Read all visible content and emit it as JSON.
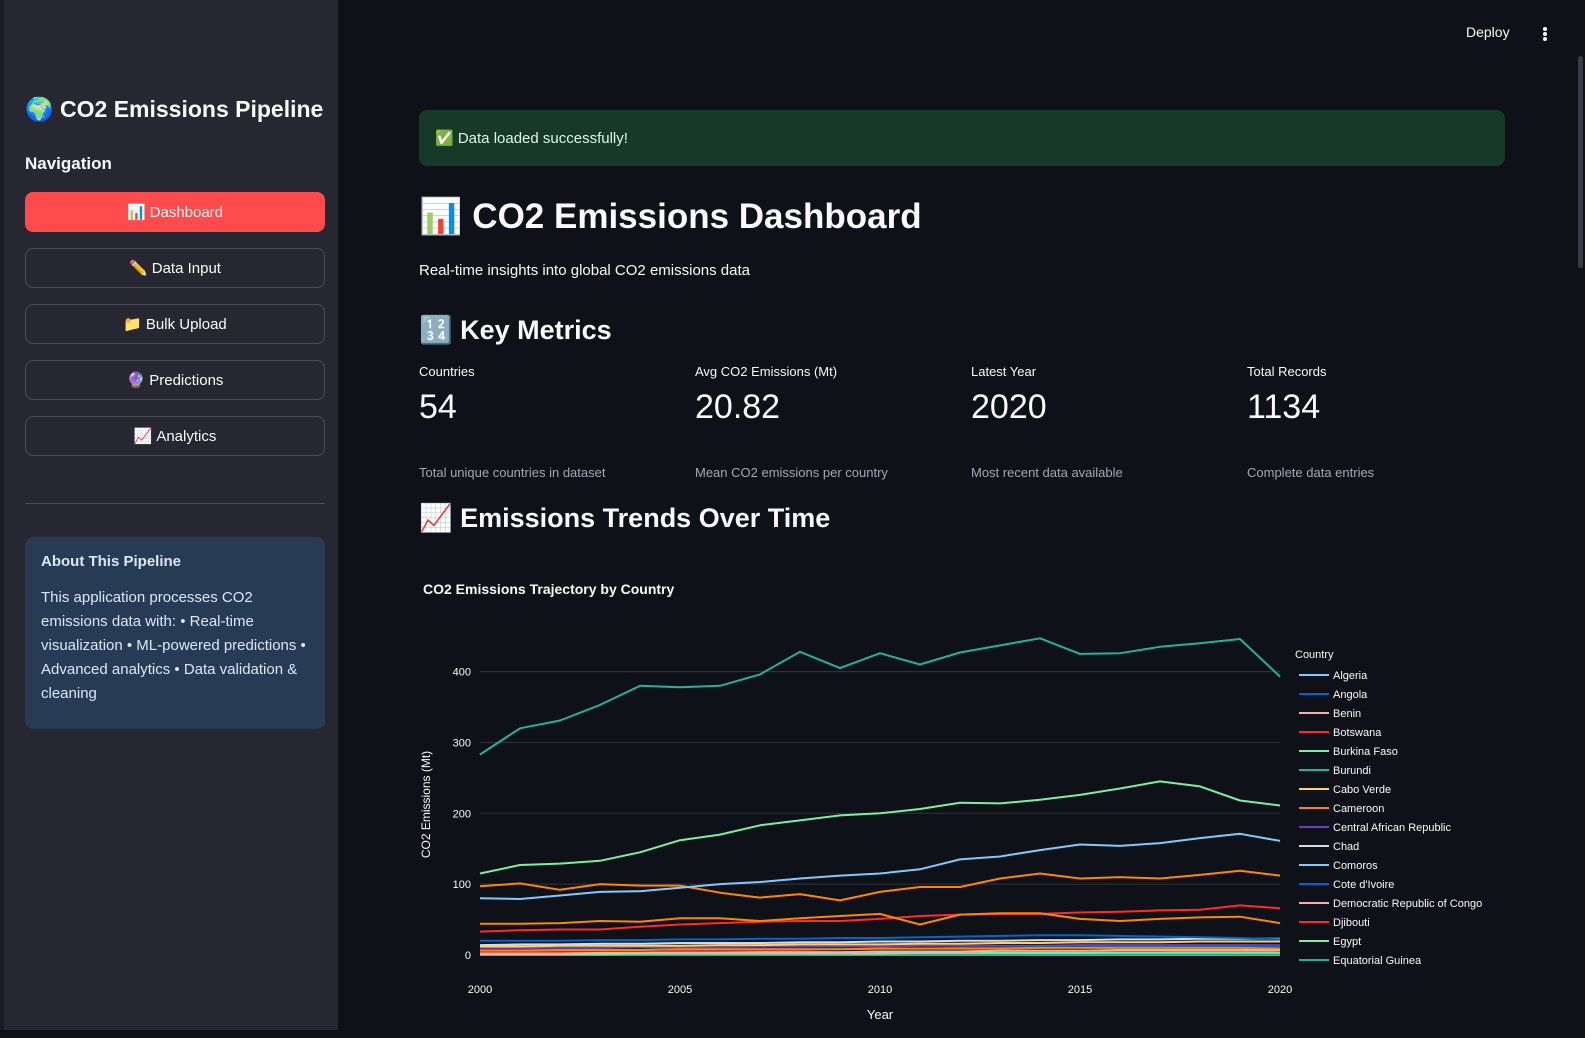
{
  "sidebar": {
    "title": "🌍 CO2 Emissions Pipeline",
    "nav_label": "Navigation",
    "items": [
      {
        "icon": "📊",
        "label": "Dashboard",
        "active": true
      },
      {
        "icon": "✏️",
        "label": "Data Input",
        "active": false
      },
      {
        "icon": "📁",
        "label": "Bulk Upload",
        "active": false
      },
      {
        "icon": "🔮",
        "label": "Predictions",
        "active": false
      },
      {
        "icon": "📈",
        "label": "Analytics",
        "active": false
      }
    ],
    "about": {
      "title": "About This Pipeline",
      "body": "This application processes CO2 emissions data with: • Real-time visualization • ML-powered predictions • Advanced analytics • Data validation & cleaning"
    }
  },
  "topbar": {
    "deploy_label": "Deploy",
    "menu_icon": "kebab-menu-icon"
  },
  "alert": {
    "text": "✅ Data loaded successfully!"
  },
  "main": {
    "title": "📊 CO2 Emissions Dashboard",
    "subtitle": "Real-time insights into global CO2 emissions data",
    "key_metrics_header": "🔢 Key Metrics",
    "trends_header": "📈 Emissions Trends Over Time"
  },
  "metrics": [
    {
      "label": "Countries",
      "value": "54",
      "help": "Total unique countries in dataset"
    },
    {
      "label": "Avg CO2 Emissions (Mt)",
      "value": "20.82",
      "help": "Mean CO2 emissions per country"
    },
    {
      "label": "Latest Year",
      "value": "2020",
      "help": "Most recent data available"
    },
    {
      "label": "Total Records",
      "value": "1134",
      "help": "Complete data entries"
    }
  ],
  "chart_data": {
    "type": "line",
    "title": "CO2 Emissions Trajectory by Country",
    "xlabel": "Year",
    "ylabel": "CO2 Emissions (Mt)",
    "xlim": [
      2000,
      2020
    ],
    "ylim": [
      0,
      470
    ],
    "x_ticks": [
      2000,
      2005,
      2010,
      2015,
      2020
    ],
    "y_ticks": [
      0,
      100,
      200,
      300,
      400
    ],
    "grid": true,
    "legend_title": "Country",
    "legend_placement": "right",
    "x": [
      2000,
      2001,
      2002,
      2003,
      2004,
      2005,
      2006,
      2007,
      2008,
      2009,
      2010,
      2011,
      2012,
      2013,
      2014,
      2015,
      2016,
      2017,
      2018,
      2019,
      2020
    ],
    "series": [
      {
        "name": "Algeria",
        "color": "#83c9ff",
        "values": [
          80,
          79,
          84,
          89,
          90,
          95,
          100,
          103,
          108,
          112,
          115,
          121,
          135,
          139,
          148,
          156,
          154,
          158,
          165,
          171,
          161
        ]
      },
      {
        "name": "Angola",
        "color": "#0068c9",
        "values": [
          20,
          20,
          20,
          21,
          21,
          22,
          22,
          23,
          23,
          24,
          24,
          25,
          26,
          27,
          28,
          28,
          27,
          26,
          25,
          24,
          22
        ]
      },
      {
        "name": "Benin",
        "color": "#ffabab",
        "values": [
          2,
          2,
          2,
          3,
          3,
          3,
          3,
          4,
          4,
          4,
          5,
          5,
          5,
          6,
          6,
          6,
          7,
          7,
          7,
          7,
          7
        ]
      },
      {
        "name": "Botswana",
        "color": "#ff2b2b",
        "values": [
          4,
          4,
          4,
          4,
          4,
          5,
          5,
          5,
          5,
          4,
          5,
          5,
          5,
          6,
          6,
          6,
          6,
          6,
          7,
          7,
          6
        ]
      },
      {
        "name": "Burkina Faso",
        "color": "#7defa1",
        "values": [
          1,
          1,
          1,
          1,
          2,
          2,
          2,
          2,
          2,
          2,
          2,
          3,
          3,
          3,
          3,
          3,
          4,
          4,
          4,
          4,
          4
        ]
      },
      {
        "name": "Burundi",
        "color": "#29b09d",
        "values": [
          0.2,
          0.2,
          0.2,
          0.2,
          0.2,
          0.2,
          0.2,
          0.2,
          0.2,
          0.2,
          0.3,
          0.3,
          0.3,
          0.4,
          0.4,
          0.4,
          0.5,
          0.5,
          0.5,
          0.6,
          0.6
        ]
      },
      {
        "name": "Cabo Verde",
        "color": "#ffd16a",
        "values": [
          0.3,
          0.3,
          0.3,
          0.3,
          0.4,
          0.4,
          0.4,
          0.4,
          0.4,
          0.4,
          0.5,
          0.5,
          0.5,
          0.5,
          0.5,
          0.6,
          0.6,
          0.6,
          0.6,
          0.6,
          0.6
        ]
      },
      {
        "name": "Cameroon",
        "color": "#ff8700",
        "values": [
          6,
          6,
          7,
          7,
          7,
          8,
          8,
          8,
          8,
          8,
          9,
          9,
          9,
          9,
          10,
          10,
          10,
          10,
          10,
          10,
          9
        ]
      },
      {
        "name": "Central African Republic",
        "color": "#6d3fc0",
        "values": [
          0.2,
          0.2,
          0.2,
          0.2,
          0.2,
          0.2,
          0.2,
          0.2,
          0.3,
          0.3,
          0.3,
          0.3,
          0.3,
          0.3,
          0.3,
          0.3,
          0.3,
          0.3,
          0.3,
          0.3,
          0.3
        ]
      },
      {
        "name": "Chad",
        "color": "#d5dae5",
        "values": [
          0.2,
          0.2,
          0.3,
          0.3,
          0.3,
          0.4,
          0.4,
          0.4,
          0.5,
          0.5,
          0.6,
          0.7,
          0.7,
          0.8,
          0.9,
          0.9,
          1,
          1,
          1,
          1,
          1
        ]
      },
      {
        "name": "Comoros",
        "color": "#83c9ff",
        "values": [
          0.1,
          0.1,
          0.1,
          0.1,
          0.1,
          0.1,
          0.1,
          0.1,
          0.1,
          0.1,
          0.2,
          0.2,
          0.2,
          0.2,
          0.2,
          0.2,
          0.2,
          0.2,
          0.2,
          0.2,
          0.2
        ]
      },
      {
        "name": "Cote d'Ivoire",
        "color": "#0068c9",
        "values": [
          7,
          7,
          7,
          7,
          7,
          8,
          8,
          8,
          8,
          8,
          9,
          9,
          10,
          10,
          11,
          11,
          12,
          12,
          12,
          12,
          12
        ]
      },
      {
        "name": "Democratic Republic of Congo",
        "color": "#ffabab",
        "values": [
          1.5,
          1.5,
          1.6,
          1.7,
          1.8,
          1.9,
          2,
          2,
          2.1,
          2.2,
          2.3,
          2.4,
          2.5,
          2.6,
          2.7,
          2.8,
          2.9,
          3,
          3,
          3.1,
          3
        ]
      },
      {
        "name": "Djibouti",
        "color": "#ff2b2b",
        "values": [
          0.4,
          0.4,
          0.4,
          0.4,
          0.4,
          0.5,
          0.5,
          0.5,
          0.5,
          0.5,
          0.5,
          0.5,
          0.6,
          0.6,
          0.6,
          0.6,
          0.6,
          0.6,
          0.6,
          0.6,
          0.6
        ]
      },
      {
        "name": "Egypt",
        "color": "#7defa1",
        "values": [
          115,
          127,
          129,
          133,
          145,
          162,
          170,
          183,
          190,
          197,
          200,
          206,
          215,
          214,
          219,
          226,
          235,
          245,
          238,
          218,
          211
        ]
      },
      {
        "name": "Equatorial Guinea",
        "color": "#29b09d",
        "values": [
          283,
          320,
          331,
          353,
          380,
          378,
          380,
          396,
          428,
          405,
          426,
          410,
          427,
          437,
          447,
          425,
          426,
          435,
          440,
          446,
          393
        ]
      },
      {
        "name": "",
        "color": "#ff8700",
        "values": [
          97,
          101,
          92,
          100,
          98,
          98,
          88,
          81,
          86,
          77,
          89,
          96,
          96,
          108,
          115,
          108,
          110,
          108,
          113,
          119,
          112
        ]
      },
      {
        "name": "",
        "color": "#ff8700",
        "values": [
          44,
          44,
          45,
          48,
          47,
          52,
          52,
          48,
          52,
          55,
          58,
          43,
          57,
          59,
          59,
          51,
          48,
          51,
          53,
          54,
          45
        ]
      },
      {
        "name": "",
        "color": "#ff2b2b",
        "values": [
          33,
          35,
          36,
          36,
          40,
          43,
          45,
          47,
          48,
          48,
          51,
          55,
          57,
          58,
          58,
          60,
          61,
          63,
          64,
          70,
          66
        ]
      },
      {
        "name": "",
        "color": "#d5dae5",
        "values": [
          14,
          15,
          15,
          16,
          16,
          17,
          17,
          17,
          18,
          18,
          19,
          19,
          20,
          20,
          21,
          21,
          22,
          22,
          23,
          23,
          23
        ]
      },
      {
        "name": "",
        "color": "#ffd16a",
        "values": [
          12,
          12,
          13,
          13,
          13,
          13,
          14,
          14,
          15,
          15,
          15,
          16,
          16,
          17,
          17,
          18,
          18,
          18,
          19,
          19,
          19
        ]
      },
      {
        "name": "",
        "color": "#6d3fc0",
        "values": [
          10,
          10,
          10,
          10,
          11,
          11,
          11,
          12,
          12,
          12,
          12,
          13,
          13,
          13,
          13,
          14,
          14,
          14,
          14,
          14,
          14
        ]
      }
    ]
  }
}
